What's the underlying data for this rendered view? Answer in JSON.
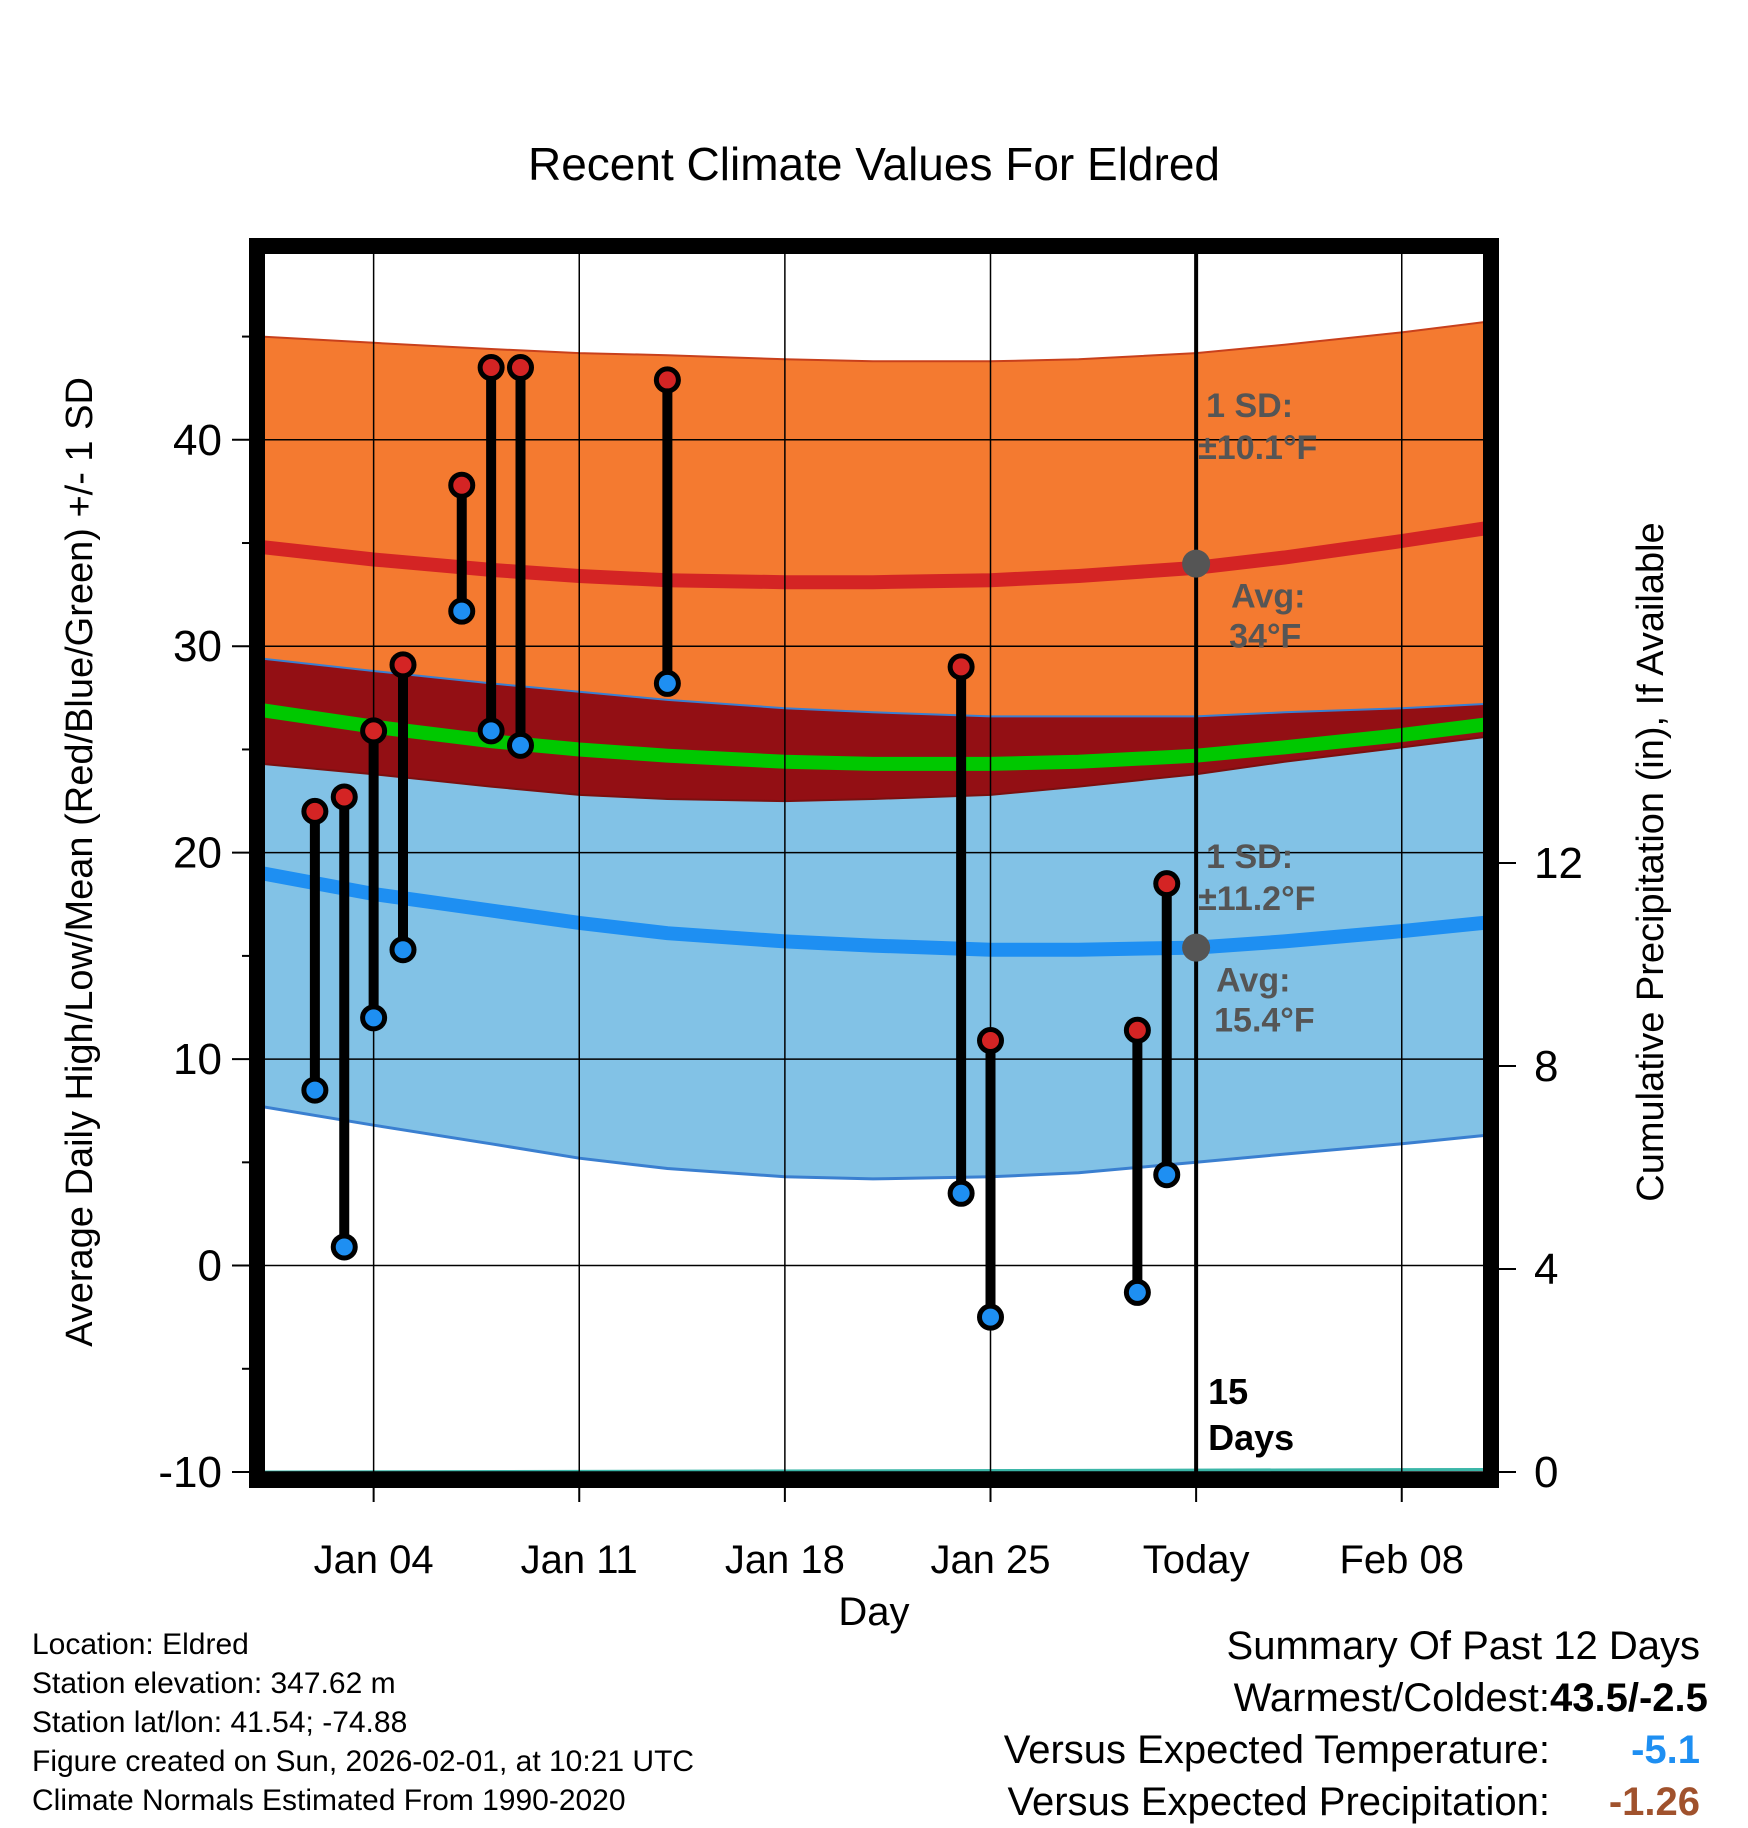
{
  "chart_data": {
    "type": "range",
    "title": "Recent Climate Values For Eldred",
    "xlabel": "Day",
    "ylabel": "Average Daily High/Low/Mean (Red/Blue/Green) +/- 1 SD",
    "y2label": "Cumulative Precipitation (in), If Available",
    "xlim": [
      0.2,
      41.8
    ],
    "ylim": [
      -10,
      49
    ],
    "y2lim": [
      0,
      24
    ],
    "x_ticks": [
      {
        "x": 4,
        "label": "Jan 04"
      },
      {
        "x": 11,
        "label": "Jan 11"
      },
      {
        "x": 18,
        "label": "Jan 18"
      },
      {
        "x": 25,
        "label": "Jan 25"
      },
      {
        "x": 32,
        "label": "Today"
      },
      {
        "x": 39,
        "label": "Feb 08"
      }
    ],
    "y_ticks": [
      -10,
      0,
      10,
      20,
      30,
      40
    ],
    "y_minor_ticks": [
      -5,
      5,
      15,
      25,
      35,
      45
    ],
    "y2_ticks": [
      0,
      4,
      8,
      12
    ],
    "curve_x": [
      0.2,
      4,
      8,
      11,
      14,
      18,
      21,
      25,
      28,
      32,
      35,
      39,
      41.8
    ],
    "normal_high": {
      "mean": [
        34.8,
        34.2,
        33.7,
        33.4,
        33.2,
        33.1,
        33.1,
        33.2,
        33.4,
        33.8,
        34.3,
        35.1,
        35.7
      ],
      "upper": [
        45.0,
        44.7,
        44.4,
        44.2,
        44.1,
        43.9,
        43.8,
        43.8,
        43.9,
        44.2,
        44.6,
        45.2,
        45.7
      ],
      "lower": [
        29.4,
        28.8,
        28.2,
        27.8,
        27.4,
        27.0,
        26.8,
        26.6,
        26.6,
        26.6,
        26.8,
        27.0,
        27.2
      ],
      "sd_label": "1 SD:",
      "sd_value": "±10.1°F",
      "avg_label": "Avg:",
      "avg_value": "34°F",
      "today_avg": 34.0
    },
    "normal_low": {
      "mean": [
        19.0,
        18.0,
        17.2,
        16.6,
        16.1,
        15.7,
        15.5,
        15.3,
        15.3,
        15.4,
        15.7,
        16.2,
        16.6
      ],
      "upper": [
        24.3,
        23.8,
        23.2,
        22.8,
        22.6,
        22.5,
        22.6,
        22.8,
        23.2,
        23.8,
        24.4,
        25.1,
        25.6
      ],
      "lower": [
        7.7,
        6.8,
        5.9,
        5.2,
        4.7,
        4.3,
        4.2,
        4.3,
        4.5,
        5.0,
        5.4,
        5.9,
        6.3
      ],
      "sd_label": "1 SD:",
      "sd_value": "±11.2°F",
      "avg_label": "Avg:",
      "avg_value": "15.4°F",
      "today_avg": 15.4
    },
    "normal_mean": [
      26.9,
      26.1,
      25.4,
      25.0,
      24.7,
      24.4,
      24.3,
      24.3,
      24.4,
      24.7,
      25.1,
      25.7,
      26.2
    ],
    "precip_cumulative": [
      {
        "x": 0.2,
        "value": 0.0
      },
      {
        "x": 41.8,
        "value": 0.05
      }
    ],
    "observations": [
      {
        "x": 2,
        "high": 22.0,
        "low": 8.5
      },
      {
        "x": 3,
        "high": 22.7,
        "low": 0.9
      },
      {
        "x": 4,
        "high": 25.9,
        "low": 12.0
      },
      {
        "x": 5,
        "high": 29.1,
        "low": 15.3
      },
      {
        "x": 7,
        "high": 37.8,
        "low": 31.7
      },
      {
        "x": 8,
        "high": 43.5,
        "low": 25.9
      },
      {
        "x": 9,
        "high": 43.5,
        "low": 25.2
      },
      {
        "x": 14,
        "high": 42.9,
        "low": 28.2
      },
      {
        "x": 24,
        "high": 29.0,
        "low": 3.5
      },
      {
        "x": 25,
        "high": 10.9,
        "low": -2.5
      },
      {
        "x": 30,
        "high": 11.4,
        "low": -1.3
      },
      {
        "x": 31,
        "high": 18.5,
        "low": 4.4
      }
    ],
    "today_x": 32,
    "today_marker": {
      "number": "15",
      "label": "Days"
    },
    "colors": {
      "high_band": "#f47a30",
      "high_mean": "#d42424",
      "low_band": "#82c2e6",
      "low_mean": "#1e8ff2",
      "overlap": "#930f14",
      "mean_line": "#00c800",
      "high_dot": "#d42424",
      "low_dot": "#1e8ff2",
      "sd_text": "#555555",
      "band_edge": "#3a7fd0",
      "precip_line": "#3bb6a8"
    }
  },
  "info": {
    "location": "Location: Eldred",
    "elevation": "Station elevation: 347.62 m",
    "latlon": "Station lat/lon: 41.54; -74.88",
    "created": "Figure created on Sun, 2026-02-01, at 10:21 UTC",
    "normals": "Climate Normals Estimated From 1990-2020"
  },
  "summary": {
    "title": "Summary Of Past 12 Days",
    "warmest_coldest_label": "Warmest/Coldest:",
    "warmest_coldest_value": "43.5/-2.5",
    "temp_label": "Versus Expected Temperature:",
    "temp_value": "-5.1",
    "temp_color": "#1e8ff2",
    "precip_label": "Versus Expected Precipitation:",
    "precip_value": "-1.26",
    "precip_color": "#a0522d"
  }
}
